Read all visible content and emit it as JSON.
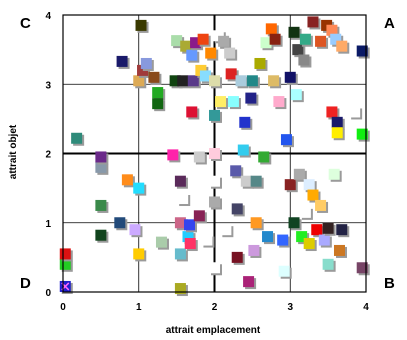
{
  "chart_data": {
    "type": "scatter",
    "xlabel": "attrait emplacement",
    "ylabel": "attrait objet",
    "xlim": [
      0,
      4
    ],
    "ylim": [
      0,
      4
    ],
    "x_ticks": [
      "0",
      "1",
      "2",
      "3",
      "4"
    ],
    "y_ticks": [
      "0",
      "1",
      "2",
      "3",
      "4"
    ],
    "grid": true,
    "quadrant_labels": {
      "top_left": "C",
      "top_right": "A",
      "bottom_left": "D",
      "bottom_right": "B"
    },
    "marker": "square",
    "points": [
      {
        "x": 0.03,
        "y": 0.08,
        "color": "#1f1fcc"
      },
      {
        "x": 0.03,
        "y": 0.4,
        "color": "#22cc22"
      },
      {
        "x": 0.03,
        "y": 0.55,
        "color": "#dd1111"
      },
      {
        "x": 0.18,
        "y": 2.22,
        "color": "#2e8b7a"
      },
      {
        "x": 0.5,
        "y": 0.82,
        "color": "#11441d"
      },
      {
        "x": 0.5,
        "y": 1.25,
        "color": "#3a8a4a"
      },
      {
        "x": 0.5,
        "y": 1.8,
        "color": "#8899aa"
      },
      {
        "x": 0.5,
        "y": 1.95,
        "color": "#6b2a8a"
      },
      {
        "x": 0.75,
        "y": 1.0,
        "color": "#224a7a"
      },
      {
        "x": 0.78,
        "y": 3.33,
        "color": "#1a1a6a"
      },
      {
        "x": 0.85,
        "y": 1.62,
        "color": "#ff8c1a"
      },
      {
        "x": 0.95,
        "y": 0.9,
        "color": "#ccaaff"
      },
      {
        "x": 1.0,
        "y": 1.5,
        "color": "#22ddff"
      },
      {
        "x": 1.0,
        "y": 0.55,
        "color": "#ffcc00"
      },
      {
        "x": 1.0,
        "y": 3.05,
        "color": "#ddaa55"
      },
      {
        "x": 1.03,
        "y": 3.85,
        "color": "#3a3a00"
      },
      {
        "x": 1.05,
        "y": 3.2,
        "color": "#a03a3a"
      },
      {
        "x": 1.1,
        "y": 3.3,
        "color": "#8899dd"
      },
      {
        "x": 1.2,
        "y": 3.1,
        "color": "#8a4a1a"
      },
      {
        "x": 1.25,
        "y": 2.88,
        "color": "#22aa22"
      },
      {
        "x": 1.25,
        "y": 2.72,
        "color": "#116611"
      },
      {
        "x": 1.3,
        "y": 0.72,
        "color": "#aaccaa"
      },
      {
        "x": 1.45,
        "y": 1.98,
        "color": "#ff22aa"
      },
      {
        "x": 1.48,
        "y": 3.05,
        "color": "#114411"
      },
      {
        "x": 1.5,
        "y": 3.63,
        "color": "#aaddaa"
      },
      {
        "x": 1.55,
        "y": 1.6,
        "color": "#5a2a5a"
      },
      {
        "x": 1.58,
        "y": 1.35,
        "color": "#ffffff"
      },
      {
        "x": 1.55,
        "y": 1.0,
        "color": "#cc6688"
      },
      {
        "x": 1.55,
        "y": 0.55,
        "color": "#66bbcc"
      },
      {
        "x": 1.55,
        "y": 0.05,
        "color": "#aaaa22"
      },
      {
        "x": 1.58,
        "y": 3.05,
        "color": "#222222"
      },
      {
        "x": 1.62,
        "y": 3.55,
        "color": "#aaaa33"
      },
      {
        "x": 1.65,
        "y": 0.8,
        "color": "#22ccff"
      },
      {
        "x": 1.67,
        "y": 0.97,
        "color": "#3344ee"
      },
      {
        "x": 1.68,
        "y": 0.7,
        "color": "#ff3366"
      },
      {
        "x": 1.7,
        "y": 3.42,
        "color": "#6699ff"
      },
      {
        "x": 1.72,
        "y": 3.05,
        "color": "#5a3a8a"
      },
      {
        "x": 1.7,
        "y": 2.6,
        "color": "#dd1133"
      },
      {
        "x": 1.75,
        "y": 3.6,
        "color": "#8a1a8a"
      },
      {
        "x": 1.8,
        "y": 1.95,
        "color": "#cccccc"
      },
      {
        "x": 1.8,
        "y": 1.1,
        "color": "#882255"
      },
      {
        "x": 1.82,
        "y": 3.2,
        "color": "#ffcc33"
      },
      {
        "x": 1.85,
        "y": 3.65,
        "color": "#ee4411"
      },
      {
        "x": 1.88,
        "y": 3.12,
        "color": "#88ddff"
      },
      {
        "x": 1.9,
        "y": 0.75,
        "color": "#ffffff"
      },
      {
        "x": 1.95,
        "y": 3.45,
        "color": "#ff8800"
      },
      {
        "x": 2.0,
        "y": 3.05,
        "color": "#ddddaa"
      },
      {
        "x": 2.0,
        "y": 2.55,
        "color": "#339999"
      },
      {
        "x": 2.0,
        "y": 2.0,
        "color": "#ffccdd"
      },
      {
        "x": 2.0,
        "y": 1.6,
        "color": "#ffffff"
      },
      {
        "x": 2.0,
        "y": 1.3,
        "color": "#aaaaaa"
      },
      {
        "x": 2.0,
        "y": 0.35,
        "color": "#ffffff"
      },
      {
        "x": 2.05,
        "y": 3.7,
        "color": "#ffffff"
      },
      {
        "x": 2.08,
        "y": 2.75,
        "color": "#ffee66"
      },
      {
        "x": 2.12,
        "y": 3.62,
        "color": "#aaaaaa"
      },
      {
        "x": 2.15,
        "y": 0.9,
        "color": "#ffffff"
      },
      {
        "x": 2.2,
        "y": 3.45,
        "color": "#cccccc"
      },
      {
        "x": 2.22,
        "y": 3.15,
        "color": "#dd2222"
      },
      {
        "x": 2.25,
        "y": 2.75,
        "color": "#88ffff"
      },
      {
        "x": 2.28,
        "y": 1.75,
        "color": "#5a5aaa"
      },
      {
        "x": 2.3,
        "y": 1.2,
        "color": "#444466"
      },
      {
        "x": 2.3,
        "y": 0.5,
        "color": "#771122"
      },
      {
        "x": 2.35,
        "y": 3.05,
        "color": "#aaccdd"
      },
      {
        "x": 2.38,
        "y": 2.05,
        "color": "#33ccee"
      },
      {
        "x": 2.4,
        "y": 2.45,
        "color": "#2233cc"
      },
      {
        "x": 2.42,
        "y": 1.6,
        "color": "#cccccc"
      },
      {
        "x": 2.45,
        "y": 0.15,
        "color": "#aa2277"
      },
      {
        "x": 2.48,
        "y": 2.8,
        "color": "#222288"
      },
      {
        "x": 2.5,
        "y": 3.05,
        "color": "#228888"
      },
      {
        "x": 2.52,
        "y": 0.6,
        "color": "#cc99dd"
      },
      {
        "x": 2.55,
        "y": 1.6,
        "color": "#558888"
      },
      {
        "x": 2.55,
        "y": 1.0,
        "color": "#ff9922"
      },
      {
        "x": 2.6,
        "y": 3.3,
        "color": "#aaaa00"
      },
      {
        "x": 2.65,
        "y": 1.95,
        "color": "#33aa33"
      },
      {
        "x": 2.68,
        "y": 3.6,
        "color": "#ccffcc"
      },
      {
        "x": 2.7,
        "y": 0.8,
        "color": "#2288cc"
      },
      {
        "x": 2.75,
        "y": 3.8,
        "color": "#ff6600"
      },
      {
        "x": 2.78,
        "y": 3.05,
        "color": "#ddbb66"
      },
      {
        "x": 2.8,
        "y": 3.65,
        "color": "#882211"
      },
      {
        "x": 2.85,
        "y": 2.75,
        "color": "#ffaacc"
      },
      {
        "x": 2.9,
        "y": 0.75,
        "color": "#3366ff"
      },
      {
        "x": 2.92,
        "y": 0.3,
        "color": "#ddffff"
      },
      {
        "x": 2.95,
        "y": 2.2,
        "color": "#2255ee"
      },
      {
        "x": 3.0,
        "y": 1.55,
        "color": "#882222"
      },
      {
        "x": 3.0,
        "y": 3.1,
        "color": "#111166"
      },
      {
        "x": 3.05,
        "y": 3.75,
        "color": "#113311"
      },
      {
        "x": 3.05,
        "y": 1.0,
        "color": "#114422"
      },
      {
        "x": 3.08,
        "y": 2.85,
        "color": "#aaffff"
      },
      {
        "x": 3.1,
        "y": 3.5,
        "color": "#444444"
      },
      {
        "x": 3.12,
        "y": 1.7,
        "color": "#aaaaaa"
      },
      {
        "x": 3.15,
        "y": 0.8,
        "color": "#22ee22"
      },
      {
        "x": 3.18,
        "y": 3.35,
        "color": "#888888"
      },
      {
        "x": 3.2,
        "y": 3.65,
        "color": "#33aa88"
      },
      {
        "x": 3.2,
        "y": 1.15,
        "color": "#ffffff"
      },
      {
        "x": 3.25,
        "y": 0.7,
        "color": "#ddcc00"
      },
      {
        "x": 3.25,
        "y": 1.55,
        "color": "#ddeeff"
      },
      {
        "x": 3.3,
        "y": 3.9,
        "color": "#882222"
      },
      {
        "x": 3.3,
        "y": 1.4,
        "color": "#ffaa00"
      },
      {
        "x": 3.35,
        "y": 0.9,
        "color": "#ee0000"
      },
      {
        "x": 3.4,
        "y": 3.62,
        "color": "#dd5522"
      },
      {
        "x": 3.4,
        "y": 1.25,
        "color": "#ffcc66"
      },
      {
        "x": 3.45,
        "y": 0.75,
        "color": "#aaaaff"
      },
      {
        "x": 3.48,
        "y": 3.85,
        "color": "#993300"
      },
      {
        "x": 3.5,
        "y": 0.4,
        "color": "#88ddcc"
      },
      {
        "x": 3.5,
        "y": 0.92,
        "color": "#332222"
      },
      {
        "x": 3.55,
        "y": 3.78,
        "color": "#ff8855"
      },
      {
        "x": 3.55,
        "y": 2.6,
        "color": "#ee2222"
      },
      {
        "x": 3.58,
        "y": 1.7,
        "color": "#ddffdd"
      },
      {
        "x": 3.6,
        "y": 3.65,
        "color": "#99ccff"
      },
      {
        "x": 3.62,
        "y": 2.45,
        "color": "#1a1a6a"
      },
      {
        "x": 3.62,
        "y": 2.3,
        "color": "#ffee00"
      },
      {
        "x": 3.65,
        "y": 0.6,
        "color": "#cc7722"
      },
      {
        "x": 3.68,
        "y": 0.9,
        "color": "#222244"
      },
      {
        "x": 3.68,
        "y": 3.55,
        "color": "#ffaa66"
      },
      {
        "x": 3.85,
        "y": 2.6,
        "color": "#ffffff"
      },
      {
        "x": 3.95,
        "y": 3.48,
        "color": "#0a1a66"
      },
      {
        "x": 3.95,
        "y": 2.28,
        "color": "#11ee11"
      },
      {
        "x": 3.95,
        "y": 0.35,
        "color": "#774466"
      }
    ],
    "markers_x": [
      {
        "x": 0.03,
        "y": 0.08
      }
    ]
  }
}
